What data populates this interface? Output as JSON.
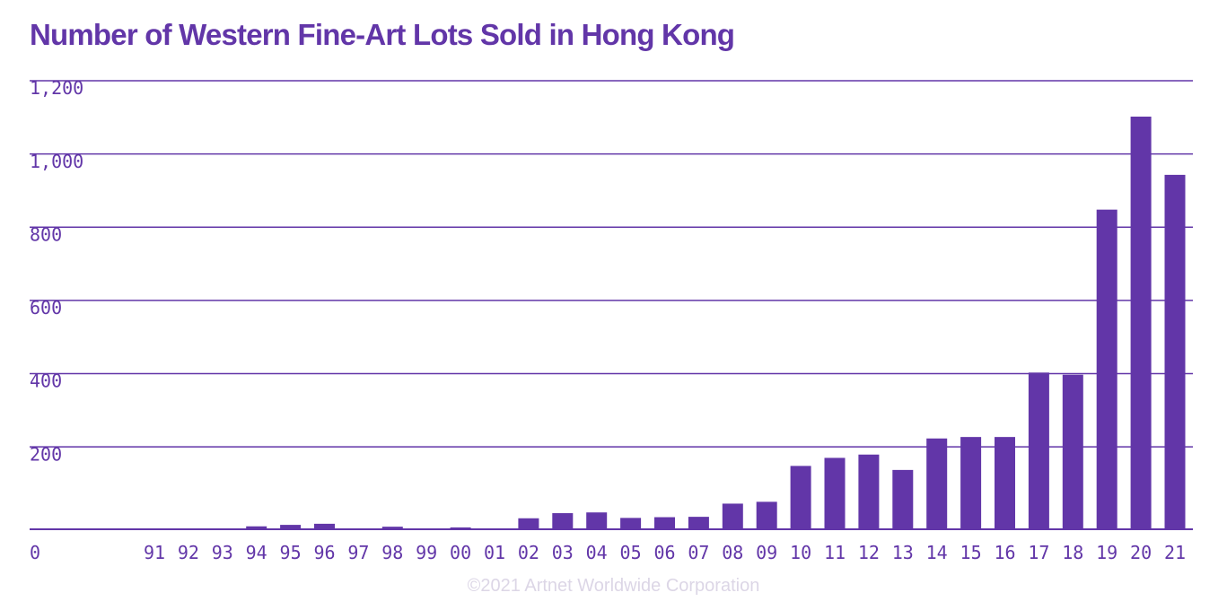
{
  "title": "Number of Western Fine-Art Lots Sold in Hong Kong",
  "credit": "©2021 Artnet Worldwide Corporation",
  "colors": {
    "bar": "#6236a8",
    "grid": "#6236a8",
    "text": "#6236a8",
    "credit": "#dcd6e6"
  },
  "chart_data": {
    "type": "bar",
    "title": "Number of Western Fine-Art Lots Sold in Hong Kong",
    "xlabel": "",
    "ylabel": "",
    "ylim": [
      0,
      1200
    ],
    "yticks": [
      0,
      200,
      400,
      600,
      800,
      1000,
      1200
    ],
    "ytick_labels": [
      "0",
      "200",
      "400",
      "600",
      "800",
      "1,000",
      "1,200"
    ],
    "grid": true,
    "legend": "none",
    "categories": [
      "91",
      "92",
      "93",
      "94",
      "95",
      "96",
      "97",
      "98",
      "99",
      "00",
      "01",
      "02",
      "03",
      "04",
      "05",
      "06",
      "07",
      "08",
      "09",
      "10",
      "11",
      "12",
      "13",
      "14",
      "15",
      "16",
      "17",
      "18",
      "19",
      "20",
      "21"
    ],
    "values": [
      1,
      1,
      1,
      8,
      12,
      15,
      1,
      7,
      1,
      5,
      1,
      30,
      44,
      46,
      31,
      33,
      34,
      70,
      75,
      173,
      195,
      204,
      162,
      248,
      252,
      252,
      428,
      422,
      873,
      1127,
      968
    ]
  }
}
